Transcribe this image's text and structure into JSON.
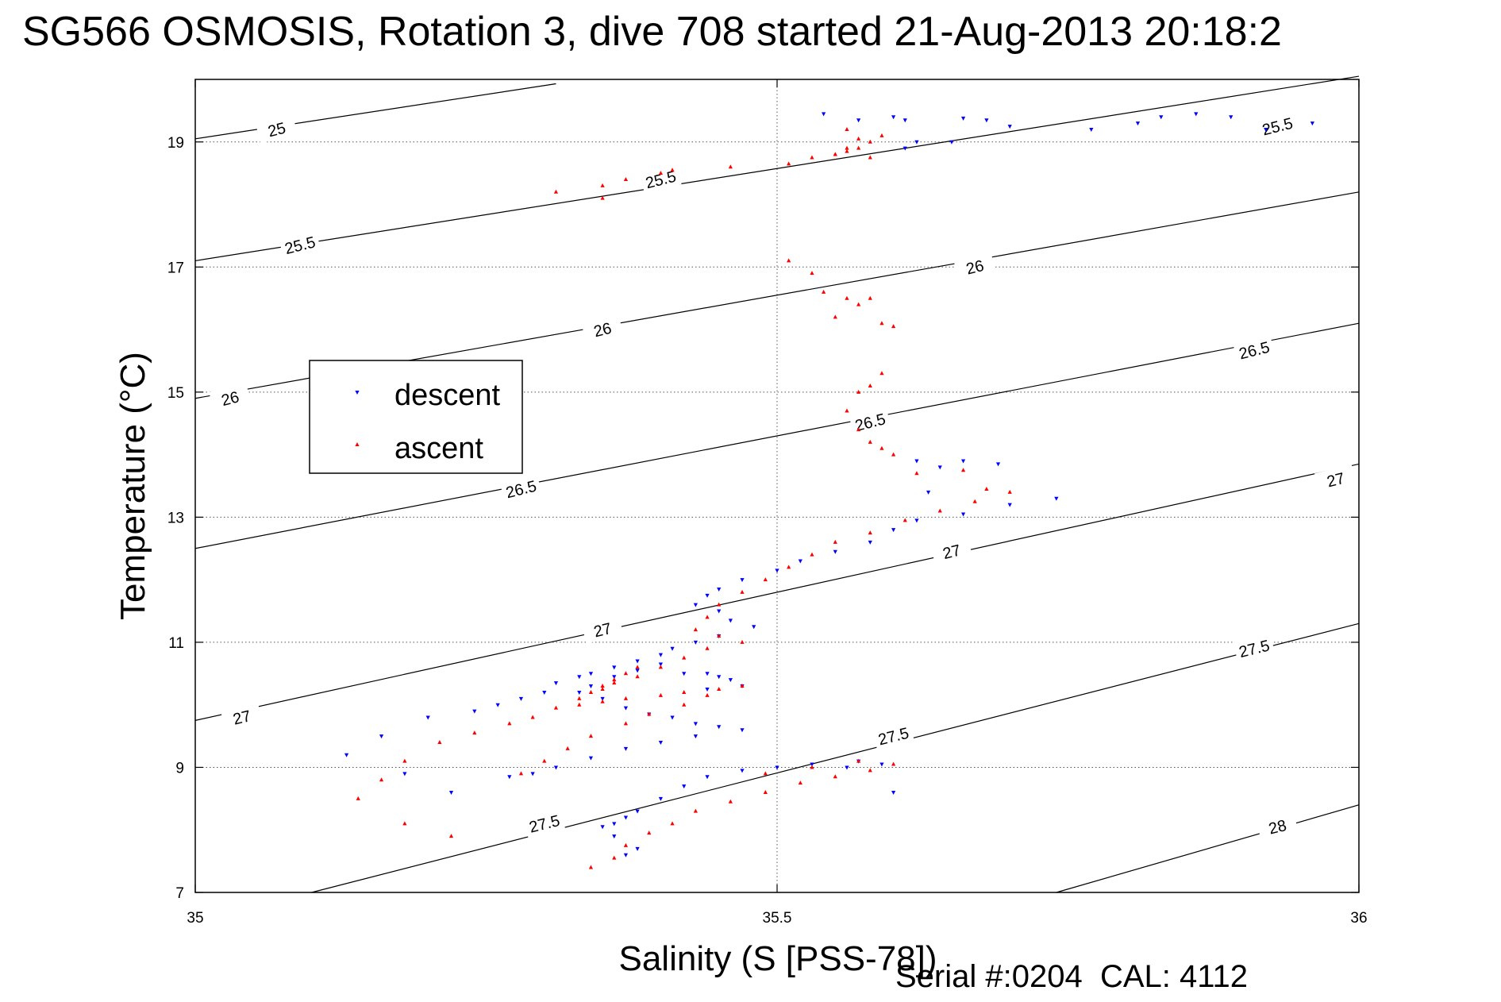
{
  "title": "SG566 OSMOSIS, Rotation 3, dive 708 started 21-Aug-2013 20:18:2",
  "footer": {
    "serial_label": "Serial #:",
    "serial_value": "0204",
    "cal_label": "CAL:",
    "cal_value": "4112"
  },
  "chart_data": {
    "type": "scatter",
    "xlabel": "Salinity (S [PSS-78])",
    "ylabel": "Temperature (°C)",
    "xlim": [
      35,
      36
    ],
    "ylim": [
      7,
      20
    ],
    "xticks": [
      35,
      35.5,
      36
    ],
    "xtick_labels": [
      "35",
      "35.5",
      "36"
    ],
    "yticks": [
      7,
      9,
      11,
      13,
      15,
      17,
      19
    ],
    "ytick_labels": [
      "7",
      "9",
      "11",
      "13",
      "15",
      "17",
      "19"
    ],
    "grid": true,
    "legend_position": "left",
    "colors": {
      "descent": "#0000ff",
      "ascent": "#ff0000",
      "contour": "#000000"
    },
    "density_contours": [
      {
        "value": 25,
        "x": [
          35.0,
          35.31
        ],
        "y": [
          19.05,
          19.93
        ]
      },
      {
        "value": 25.5,
        "x": [
          35.0,
          36.0
        ],
        "y": [
          17.1,
          20.05
        ]
      },
      {
        "value": 26,
        "x": [
          35.0,
          36.0
        ],
        "y": [
          14.9,
          18.2
        ]
      },
      {
        "value": 26.5,
        "x": [
          35.0,
          36.0
        ],
        "y": [
          12.5,
          16.1
        ]
      },
      {
        "value": 27,
        "x": [
          35.0,
          36.0
        ],
        "y": [
          9.75,
          13.85
        ]
      },
      {
        "value": 27.5,
        "x": [
          35.1,
          36.0
        ],
        "y": [
          7.0,
          11.3
        ]
      },
      {
        "value": 28,
        "x": [
          35.74,
          36.0
        ],
        "y": [
          7.0,
          8.4
        ]
      }
    ],
    "contour_labels": [
      {
        "text": "25",
        "x": 35.07,
        "y": 19.2
      },
      {
        "text": "25.5",
        "x": 35.93,
        "y": 19.25
      },
      {
        "text": "25.5",
        "x": 35.4,
        "y": 18.4
      },
      {
        "text": "25.5",
        "x": 35.09,
        "y": 17.35
      },
      {
        "text": "26",
        "x": 35.67,
        "y": 17.0
      },
      {
        "text": "26",
        "x": 35.35,
        "y": 16.0
      },
      {
        "text": "26",
        "x": 35.03,
        "y": 14.9
      },
      {
        "text": "26.5",
        "x": 35.91,
        "y": 15.67
      },
      {
        "text": "26.5",
        "x": 35.58,
        "y": 14.52
      },
      {
        "text": "26.5",
        "x": 35.28,
        "y": 13.45
      },
      {
        "text": "27",
        "x": 35.98,
        "y": 13.6
      },
      {
        "text": "27",
        "x": 35.65,
        "y": 12.45
      },
      {
        "text": "27",
        "x": 35.35,
        "y": 11.2
      },
      {
        "text": "27",
        "x": 35.04,
        "y": 9.8
      },
      {
        "text": "27.5",
        "x": 35.91,
        "y": 10.9
      },
      {
        "text": "27.5",
        "x": 35.6,
        "y": 9.5
      },
      {
        "text": "27.5",
        "x": 35.3,
        "y": 8.1
      },
      {
        "text": "28",
        "x": 35.93,
        "y": 8.05
      }
    ],
    "series": [
      {
        "name": "descent",
        "x": [
          35.54,
          35.57,
          35.6,
          35.61,
          35.66,
          35.68,
          35.7,
          35.62,
          35.61,
          35.65,
          35.77,
          35.81,
          35.83,
          35.86,
          35.89,
          35.92,
          35.96,
          35.63,
          35.62,
          35.64,
          35.66,
          35.69,
          35.74,
          35.7,
          35.66,
          35.62,
          35.6,
          35.58,
          35.55,
          35.52,
          35.5,
          35.47,
          35.45,
          35.44,
          35.43,
          35.45,
          35.46,
          35.48,
          35.45,
          35.43,
          35.41,
          35.4,
          35.38,
          35.36,
          35.34,
          35.33,
          35.31,
          35.3,
          35.28,
          35.26,
          35.24,
          35.2,
          35.16,
          35.13,
          35.18,
          35.22,
          35.47,
          35.45,
          35.44,
          35.46,
          35.44,
          35.42,
          35.4,
          35.38,
          35.36,
          35.34,
          35.33,
          35.35,
          35.37,
          35.39,
          35.41,
          35.43,
          35.45,
          35.47,
          35.43,
          35.4,
          35.37,
          35.34,
          35.31,
          35.29,
          35.27,
          35.37,
          35.38,
          35.36,
          35.35,
          35.36,
          35.37,
          35.38,
          35.4,
          35.42,
          35.44,
          35.47,
          35.5,
          35.53,
          35.57,
          35.59,
          35.56,
          35.6
        ],
        "y": [
          19.45,
          19.35,
          19.4,
          19.35,
          19.38,
          19.35,
          19.25,
          19.0,
          18.9,
          19.0,
          19.2,
          19.3,
          19.4,
          19.45,
          19.4,
          19.2,
          19.3,
          13.4,
          13.9,
          13.8,
          13.9,
          13.85,
          13.3,
          13.2,
          13.05,
          12.95,
          12.8,
          12.6,
          12.45,
          12.3,
          12.15,
          12.0,
          11.85,
          11.75,
          11.6,
          11.5,
          11.35,
          11.25,
          11.1,
          11.0,
          10.9,
          10.8,
          10.7,
          10.6,
          10.5,
          10.45,
          10.35,
          10.2,
          10.1,
          10.0,
          9.9,
          9.8,
          9.5,
          9.2,
          8.9,
          8.6,
          10.3,
          10.45,
          10.5,
          10.4,
          10.25,
          10.5,
          10.65,
          10.55,
          10.45,
          10.3,
          10.2,
          10.1,
          9.95,
          9.85,
          9.8,
          9.7,
          9.65,
          9.6,
          9.5,
          9.4,
          9.3,
          9.15,
          9.0,
          8.9,
          8.85,
          7.6,
          7.7,
          7.9,
          8.05,
          8.1,
          8.2,
          8.3,
          8.5,
          8.7,
          8.85,
          8.95,
          9.0,
          9.05,
          9.1,
          9.05,
          9.0,
          8.6
        ]
      },
      {
        "name": "ascent",
        "x": [
          35.31,
          35.35,
          35.35,
          35.37,
          35.4,
          35.41,
          35.46,
          35.51,
          35.53,
          35.55,
          35.56,
          35.57,
          35.58,
          35.59,
          35.56,
          35.57,
          35.56,
          35.55,
          35.58,
          35.51,
          35.53,
          35.54,
          35.56,
          35.55,
          35.57,
          35.58,
          35.59,
          35.6,
          35.59,
          35.58,
          35.57,
          35.56,
          35.57,
          35.58,
          35.59,
          35.6,
          35.62,
          35.66,
          35.68,
          35.7,
          35.67,
          35.64,
          35.61,
          35.58,
          35.55,
          35.53,
          35.51,
          35.49,
          35.47,
          35.45,
          35.44,
          35.43,
          35.45,
          35.47,
          35.44,
          35.42,
          35.4,
          35.38,
          35.36,
          35.35,
          35.33,
          35.31,
          35.29,
          35.27,
          35.24,
          35.21,
          35.18,
          35.16,
          35.14,
          35.18,
          35.22,
          35.35,
          35.37,
          35.38,
          35.36,
          35.34,
          35.33,
          35.35,
          35.37,
          35.4,
          35.42,
          35.45,
          35.47,
          35.44,
          35.42,
          35.39,
          35.37,
          35.34,
          35.32,
          35.3,
          35.28,
          35.34,
          35.36,
          35.37,
          35.39,
          35.41,
          35.43,
          35.46,
          35.49,
          35.52,
          35.55,
          35.58,
          35.6,
          35.57,
          35.53,
          35.49
        ],
        "y": [
          18.2,
          18.1,
          18.3,
          18.4,
          18.5,
          18.55,
          18.6,
          18.65,
          18.75,
          18.8,
          18.85,
          18.9,
          19.0,
          19.1,
          19.2,
          19.05,
          18.9,
          18.8,
          18.75,
          17.1,
          16.9,
          16.6,
          16.5,
          16.2,
          16.4,
          16.5,
          16.1,
          16.05,
          15.3,
          15.1,
          15.0,
          14.7,
          14.4,
          14.2,
          14.1,
          14.0,
          13.7,
          13.75,
          13.45,
          13.4,
          13.25,
          13.1,
          12.95,
          12.75,
          12.6,
          12.4,
          12.2,
          12.0,
          11.8,
          11.6,
          11.4,
          11.2,
          11.1,
          11.0,
          10.9,
          10.75,
          10.6,
          10.45,
          10.35,
          10.25,
          10.1,
          9.95,
          9.8,
          9.7,
          9.55,
          9.4,
          9.1,
          8.8,
          8.5,
          8.1,
          7.9,
          10.3,
          10.5,
          10.6,
          10.4,
          10.2,
          10.0,
          10.05,
          10.1,
          10.15,
          10.2,
          10.25,
          10.3,
          10.15,
          10.0,
          9.85,
          9.7,
          9.5,
          9.3,
          9.1,
          8.9,
          7.4,
          7.55,
          7.75,
          7.95,
          8.1,
          8.3,
          8.45,
          8.6,
          8.75,
          8.85,
          8.95,
          9.05,
          9.1,
          9.0,
          8.9
        ]
      }
    ]
  }
}
